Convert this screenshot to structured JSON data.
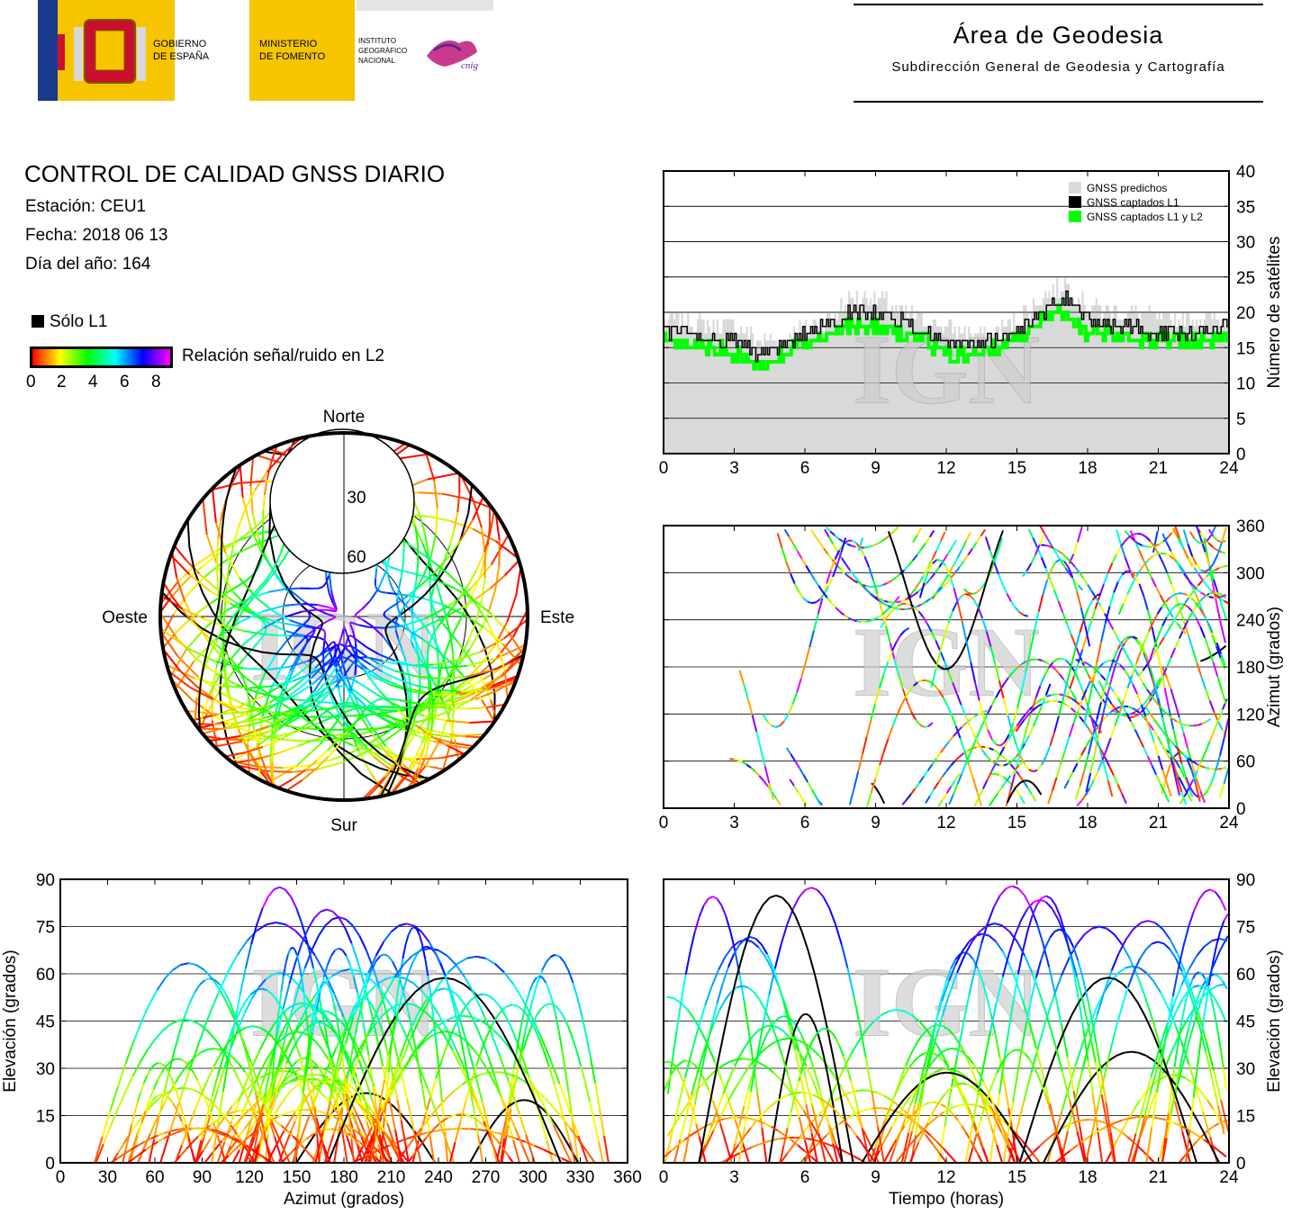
{
  "header": {
    "gov_line1": "GOBIERNO",
    "gov_line2": "DE ESPAÑA",
    "ministry_line1": "MINISTERIO",
    "ministry_line2": "DE FOMENTO",
    "ign_line1": "INSTITUTO",
    "ign_line2": "GEOGRÁFICO",
    "ign_line3": "NACIONAL",
    "cnig": "cnig",
    "area_title": "Área de Geodesia",
    "area_subtitle": "Subdirección General de Geodesia y Cartografía"
  },
  "report": {
    "title": "CONTROL DE CALIDAD GNSS DIARIO",
    "station": "Estación: CEU1",
    "date": "Fecha: 2018 06 13",
    "doy": "Día del año: 164"
  },
  "legend": {
    "l1_only": "Sólo L1",
    "snr_label": "Relación señal/ruido en L2",
    "snr_ticks": [
      "0",
      "2",
      "4",
      "6",
      "8"
    ]
  },
  "colors": {
    "predicted": "#d9d9d9",
    "l1": "#000000",
    "l1l2": "#00ff00",
    "snr_scale": [
      "#ff0000",
      "#ffff00",
      "#00ff00",
      "#00ffff",
      "#0000ff",
      "#ff00ff"
    ],
    "watermark": "IGN"
  },
  "chart_data": [
    {
      "type": "area",
      "title": "",
      "xlabel": "",
      "ylabel": "Número de satélites",
      "xlim": [
        0,
        24
      ],
      "ylim": [
        0,
        40
      ],
      "xticks": [
        "0",
        "3",
        "6",
        "9",
        "12",
        "15",
        "18",
        "21",
        "24"
      ],
      "yticks": [
        "0",
        "5",
        "10",
        "15",
        "20",
        "25",
        "30",
        "35",
        "40"
      ],
      "legend_position": "top-right",
      "grid": true,
      "x": [
        0,
        1,
        2,
        3,
        4,
        5,
        6,
        7,
        8,
        9,
        10,
        11,
        12,
        13,
        14,
        15,
        16,
        17,
        18,
        19,
        20,
        21,
        22,
        23,
        24
      ],
      "series": [
        {
          "name": "GNSS predichos",
          "values": [
            19,
            19,
            18,
            18,
            16,
            16,
            18,
            19,
            22,
            22,
            20,
            19,
            18,
            17,
            17,
            19,
            22,
            24,
            21,
            20,
            20,
            19,
            19,
            19,
            19
          ]
        },
        {
          "name": "GNSS captados L1",
          "values": [
            17,
            17,
            16,
            16,
            14,
            15,
            17,
            18,
            20,
            20,
            19,
            17,
            16,
            15,
            16,
            17,
            20,
            22,
            19,
            18,
            18,
            17,
            17,
            17,
            18
          ]
        },
        {
          "name": "GNSS captados L1 y L2",
          "values": [
            16,
            15,
            15,
            14,
            12,
            14,
            16,
            17,
            18,
            18,
            17,
            16,
            14,
            14,
            15,
            16,
            19,
            20,
            17,
            17,
            16,
            16,
            16,
            16,
            17
          ]
        }
      ]
    },
    {
      "type": "scatter",
      "title": "",
      "polar": true,
      "direction_labels": [
        "Norte",
        "Este",
        "Sur",
        "Oeste"
      ],
      "elevation_labels": [
        "30",
        "60"
      ]
    },
    {
      "type": "scatter",
      "title": "",
      "xlabel": "",
      "ylabel": "Azimut (grados)",
      "xlim": [
        0,
        24
      ],
      "ylim": [
        0,
        360
      ],
      "xticks": [
        "0",
        "3",
        "6",
        "9",
        "12",
        "15",
        "18",
        "21",
        "24"
      ],
      "yticks": [
        "0",
        "60",
        "120",
        "180",
        "240",
        "300",
        "360"
      ],
      "grid": true
    },
    {
      "type": "scatter",
      "title": "",
      "xlabel": "Azimut (grados)",
      "ylabel": "Elevación (grados)",
      "xlim": [
        0,
        360
      ],
      "ylim": [
        0,
        90
      ],
      "xticks": [
        "0",
        "30",
        "60",
        "90",
        "120",
        "150",
        "180",
        "210",
        "240",
        "270",
        "300",
        "330",
        "360"
      ],
      "yticks": [
        "0",
        "15",
        "30",
        "45",
        "60",
        "75",
        "90"
      ],
      "grid": true
    },
    {
      "type": "scatter",
      "title": "",
      "xlabel": "Tiempo (horas)",
      "ylabel": "Elevación (grados)",
      "xlim": [
        0,
        24
      ],
      "ylim": [
        0,
        90
      ],
      "xticks": [
        "0",
        "3",
        "6",
        "9",
        "12",
        "15",
        "18",
        "21",
        "24"
      ],
      "yticks": [
        "0",
        "15",
        "30",
        "45",
        "60",
        "75",
        "90"
      ],
      "grid": true
    }
  ]
}
